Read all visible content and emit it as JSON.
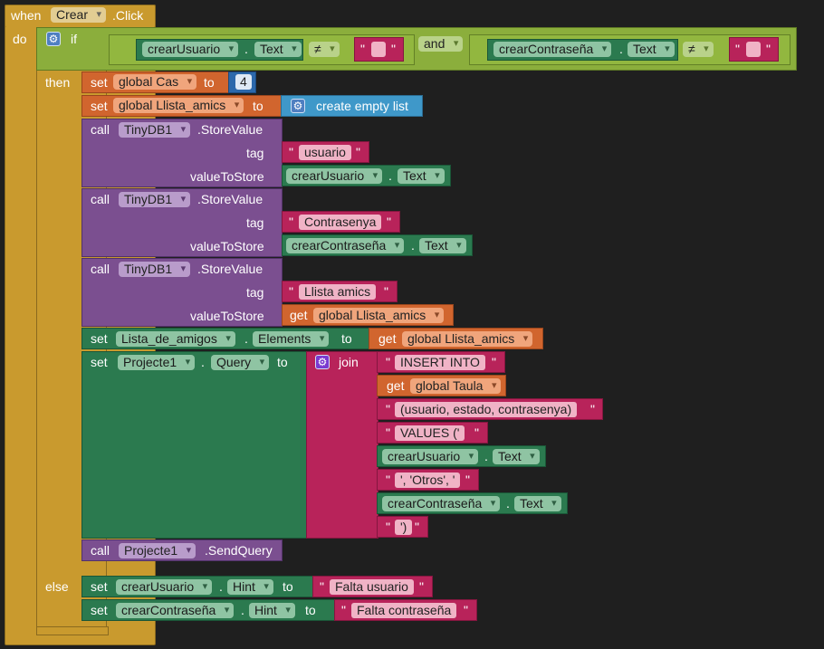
{
  "event": {
    "when": "when",
    "component": "Crear",
    "event_name": ".Click",
    "do": "do"
  },
  "if_block": {
    "if": "if",
    "then": "then",
    "else": "else",
    "and": "and",
    "neq": "≠"
  },
  "cond1": {
    "component": "crearUsuario",
    "property": "Text"
  },
  "cond2": {
    "component": "crearContraseña",
    "property": "Text"
  },
  "keywords": {
    "set": "set",
    "to": "to",
    "call": "call",
    "get": "get",
    "tag": "tag",
    "value_to_store": "valueToStore",
    "join": "join",
    "dot": "."
  },
  "set_cas": {
    "variable": "global Cas",
    "value": "4"
  },
  "set_llista": {
    "variable": "global Llista_amics",
    "value": "create empty list"
  },
  "store1": {
    "component": "TinyDB1",
    "method": ".StoreValue",
    "tag": "usuario",
    "value_component": "crearUsuario",
    "value_property": "Text"
  },
  "store2": {
    "component": "TinyDB1",
    "method": ".StoreValue",
    "tag": "Contrasenya",
    "value_component": "crearContraseña",
    "value_property": "Text"
  },
  "store3": {
    "component": "TinyDB1",
    "method": ".StoreValue",
    "tag": "Llista amics",
    "value_variable": "global Llista_amics"
  },
  "set_elements": {
    "component": "Lista_de_amigos",
    "property": "Elements",
    "value_variable": "global Llista_amics"
  },
  "set_query": {
    "component": "Projecte1",
    "property": "Query",
    "parts": {
      "p1": "INSERT INTO",
      "p2": "global Taula",
      "p3": "(usuario, estado, contrasenya)",
      "p4": "VALUES ('",
      "p5_component": "crearUsuario",
      "p5_property": "Text",
      "p6": "', 'Otros', '",
      "p7_component": "crearContraseña",
      "p7_property": "Text",
      "p8": "')"
    }
  },
  "send_query": {
    "component": "Projecte1",
    "method": ".SendQuery"
  },
  "else_hint1": {
    "component": "crearUsuario",
    "property": "Hint",
    "value": "Falta usuario"
  },
  "else_hint2": {
    "component": "crearContraseña",
    "property": "Hint",
    "value": "Falta contraseña"
  },
  "quote": "\"",
  "colors": {
    "background": "#1f1f1f",
    "event": "#c99a2e",
    "if_header": "#8bae3c",
    "variables": "#d1652e",
    "procedures": "#7b4f90",
    "component_setters": "#2b7a4f",
    "text": "#b8235a",
    "lists": "#3f98c9",
    "math": "#2c68ab"
  }
}
